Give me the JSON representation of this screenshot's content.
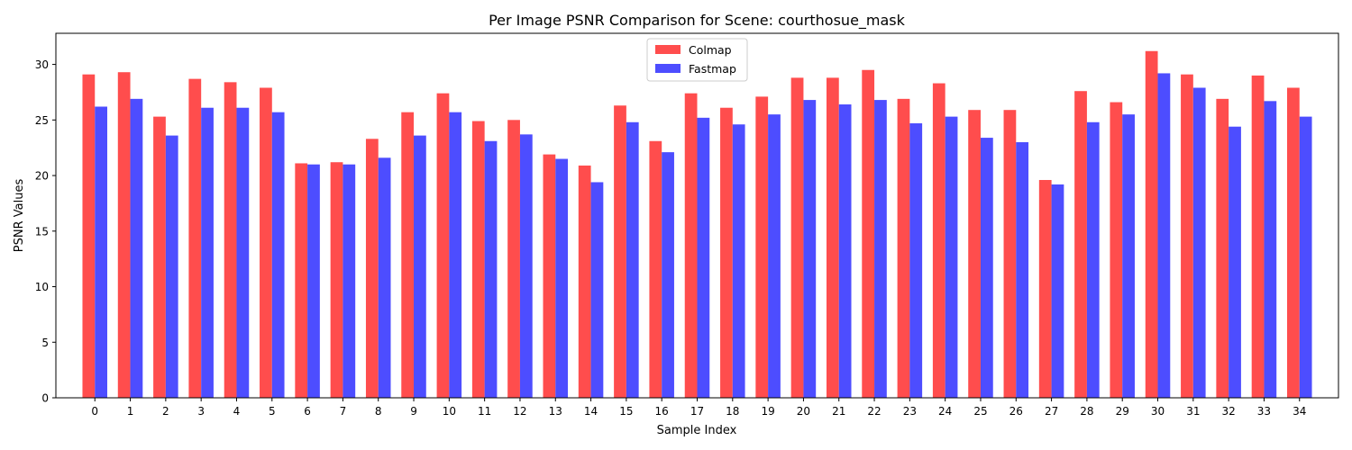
{
  "chart_data": {
    "type": "bar",
    "title": "Per Image PSNR Comparison for Scene: courthosue_mask",
    "xlabel": "Sample Index",
    "ylabel": "PSNR Values",
    "ylim": [
      0,
      32.8
    ],
    "yticks": [
      0,
      5,
      10,
      15,
      20,
      25,
      30
    ],
    "grid": false,
    "legend_position": "top-center",
    "categories": [
      "0",
      "1",
      "2",
      "3",
      "4",
      "5",
      "6",
      "7",
      "8",
      "9",
      "10",
      "11",
      "12",
      "13",
      "14",
      "15",
      "16",
      "17",
      "18",
      "19",
      "20",
      "21",
      "22",
      "23",
      "24",
      "25",
      "26",
      "27",
      "28",
      "29",
      "30",
      "31",
      "32",
      "33",
      "34"
    ],
    "series": [
      {
        "name": "Colmap",
        "color": "#ff4d4d",
        "values": [
          29.1,
          29.3,
          25.3,
          28.7,
          28.4,
          27.9,
          21.1,
          21.2,
          23.3,
          25.7,
          27.4,
          24.9,
          25.0,
          21.9,
          20.9,
          26.3,
          23.1,
          27.4,
          26.1,
          27.1,
          28.8,
          28.8,
          29.5,
          26.9,
          28.3,
          25.9,
          25.9,
          19.6,
          27.6,
          26.6,
          31.2,
          29.1,
          26.9,
          29.0,
          27.9
        ]
      },
      {
        "name": "Fastmap",
        "color": "#4d4dff",
        "values": [
          26.2,
          26.9,
          23.6,
          26.1,
          26.1,
          25.7,
          21.0,
          21.0,
          21.6,
          23.6,
          25.7,
          23.1,
          23.7,
          21.5,
          19.4,
          24.8,
          22.1,
          25.2,
          24.6,
          25.5,
          26.8,
          26.4,
          26.8,
          24.7,
          25.3,
          23.4,
          23.0,
          19.2,
          24.8,
          25.5,
          29.2,
          27.9,
          24.4,
          26.7,
          25.3
        ]
      }
    ]
  }
}
